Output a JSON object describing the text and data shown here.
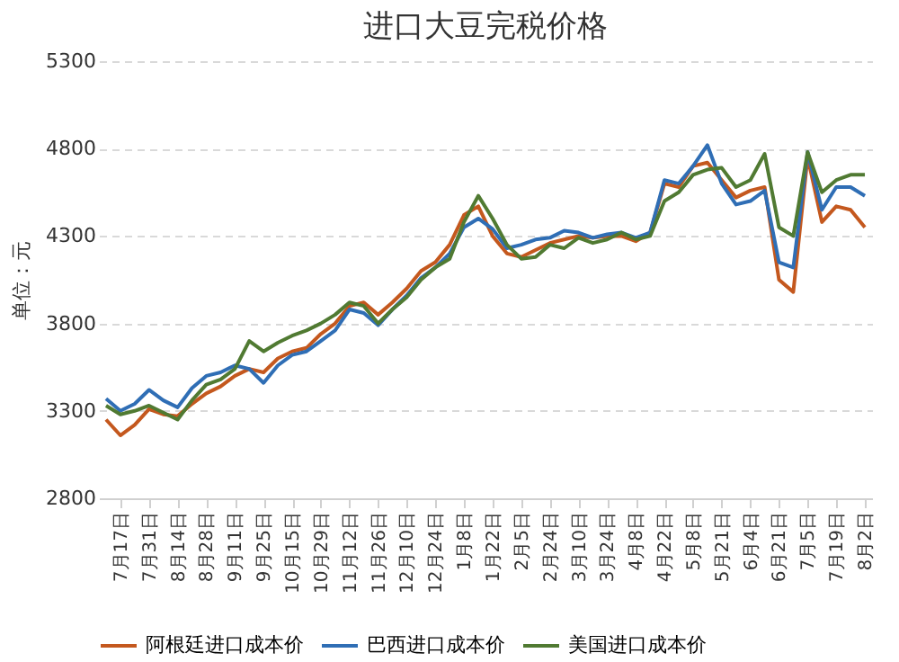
{
  "chart_data": {
    "type": "line",
    "title": "进口大豆完税价格",
    "ylabel": "单位：元",
    "categories": [
      null,
      "7月17日",
      null,
      "7月31日",
      null,
      "8月14日",
      null,
      "8月28日",
      null,
      "9月11日",
      null,
      "9月25日",
      null,
      "10月15日",
      null,
      "10月29日",
      null,
      "11月12日",
      null,
      "11月26日",
      null,
      "12月10日",
      null,
      "12月24日",
      null,
      "1月8日",
      null,
      "1月22日",
      null,
      "2月5日",
      null,
      "2月24日",
      null,
      "3月10日",
      null,
      "3月24日",
      null,
      "4月8日",
      null,
      "4月22日",
      null,
      "5月8日",
      null,
      "5月21日",
      null,
      "6月4日",
      null,
      "6月21日",
      null,
      "7月5日",
      null,
      "7月19日",
      null,
      "8月2日"
    ],
    "series": [
      {
        "name": "阿根廷进口成本价",
        "color": "#c4581e",
        "values": [
          3250,
          3160,
          3220,
          3310,
          3280,
          3270,
          3340,
          3400,
          3440,
          3500,
          3540,
          3520,
          3600,
          3640,
          3660,
          3740,
          3800,
          3900,
          3920,
          3850,
          3920,
          4000,
          4100,
          4150,
          4250,
          4420,
          4470,
          4300,
          4200,
          4180,
          4220,
          4260,
          4280,
          4300,
          4290,
          4300,
          4300,
          4270,
          4320,
          4600,
          4580,
          4700,
          4720,
          4620,
          4520,
          4560,
          4580,
          4050,
          3980,
          4750,
          4380,
          4470,
          4450,
          4350
        ]
      },
      {
        "name": "巴西进口成本价",
        "color": "#2f6eb5",
        "values": [
          3370,
          3300,
          3340,
          3420,
          3360,
          3320,
          3430,
          3500,
          3520,
          3560,
          3540,
          3460,
          3560,
          3620,
          3640,
          3700,
          3760,
          3880,
          3860,
          3790,
          3880,
          3960,
          4060,
          4120,
          4200,
          4350,
          4400,
          4340,
          4230,
          4250,
          4280,
          4290,
          4330,
          4320,
          4290,
          4310,
          4320,
          4290,
          4320,
          4620,
          4600,
          4700,
          4820,
          4600,
          4480,
          4500,
          4560,
          4150,
          4120,
          4780,
          4450,
          4580,
          4580,
          4530
        ]
      },
      {
        "name": "美国进口成本价",
        "color": "#507a32",
        "values": [
          3330,
          3280,
          3300,
          3330,
          3290,
          3250,
          3360,
          3450,
          3480,
          3540,
          3700,
          3640,
          3690,
          3730,
          3760,
          3800,
          3850,
          3920,
          3900,
          3800,
          3880,
          3950,
          4050,
          4120,
          4170,
          4380,
          4530,
          4400,
          4250,
          4170,
          4180,
          4250,
          4230,
          4290,
          4260,
          4280,
          4320,
          4280,
          4300,
          4500,
          4550,
          4650,
          4680,
          4690,
          4580,
          4620,
          4770,
          4350,
          4300,
          4780,
          4550,
          4620,
          4650,
          4650
        ]
      }
    ],
    "ylim": [
      2800,
      5300
    ],
    "yticks": [
      2800,
      3300,
      3800,
      4300,
      4800,
      5300
    ],
    "grid": "y",
    "legend": "bottom",
    "line_style": "solid"
  }
}
